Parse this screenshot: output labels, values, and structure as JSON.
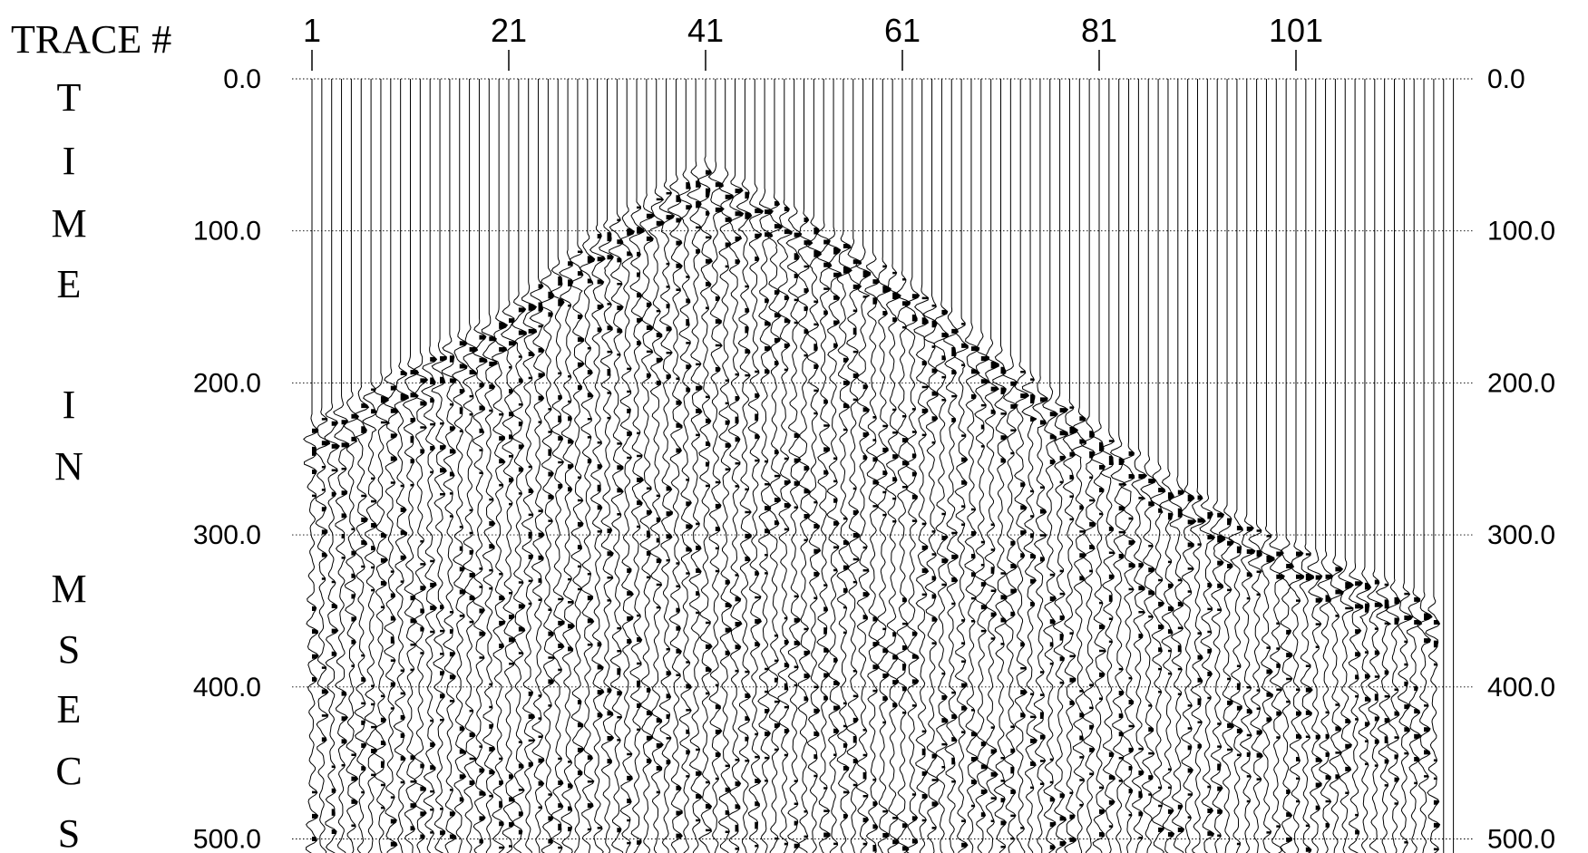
{
  "chart_data": {
    "type": "seismic_wiggle",
    "x_axis_label": "TRACE #",
    "x_ticks": [
      1,
      21,
      41,
      61,
      81,
      101
    ],
    "x_tick_labels": [
      "1",
      "21",
      "41",
      "61",
      "81",
      "101"
    ],
    "y_axis_label": "TIME IN MSECS",
    "y_axis_label_letters": [
      "T",
      "I",
      "M",
      "E",
      "I",
      "N",
      "M",
      "S",
      "E",
      "C",
      "S"
    ],
    "y_ticks": [
      0,
      100,
      200,
      300,
      400,
      500
    ],
    "y_tick_labels": [
      "0.0",
      "100.0",
      "200.0",
      "300.0",
      "400.0",
      "500.0"
    ],
    "ylim": [
      0,
      510
    ],
    "trace_range": [
      1,
      117
    ],
    "grid": true,
    "first_break_picks": [
      {
        "trace": 1,
        "time_ms": 225
      },
      {
        "trace": 10,
        "time_ms": 190
      },
      {
        "trace": 20,
        "time_ms": 155
      },
      {
        "trace": 30,
        "time_ms": 100
      },
      {
        "trace": 36,
        "time_ms": 75
      },
      {
        "trace": 41,
        "time_ms": 55
      },
      {
        "trace": 48,
        "time_ms": 80
      },
      {
        "trace": 55,
        "time_ms": 105
      },
      {
        "trace": 62,
        "time_ms": 135
      },
      {
        "trace": 70,
        "time_ms": 175
      },
      {
        "trace": 80,
        "time_ms": 225
      },
      {
        "trace": 90,
        "time_ms": 270
      },
      {
        "trace": 100,
        "time_ms": 305
      },
      {
        "trace": 110,
        "time_ms": 330
      },
      {
        "trace": 115,
        "time_ms": 345
      }
    ],
    "last_live_trace": 115
  }
}
